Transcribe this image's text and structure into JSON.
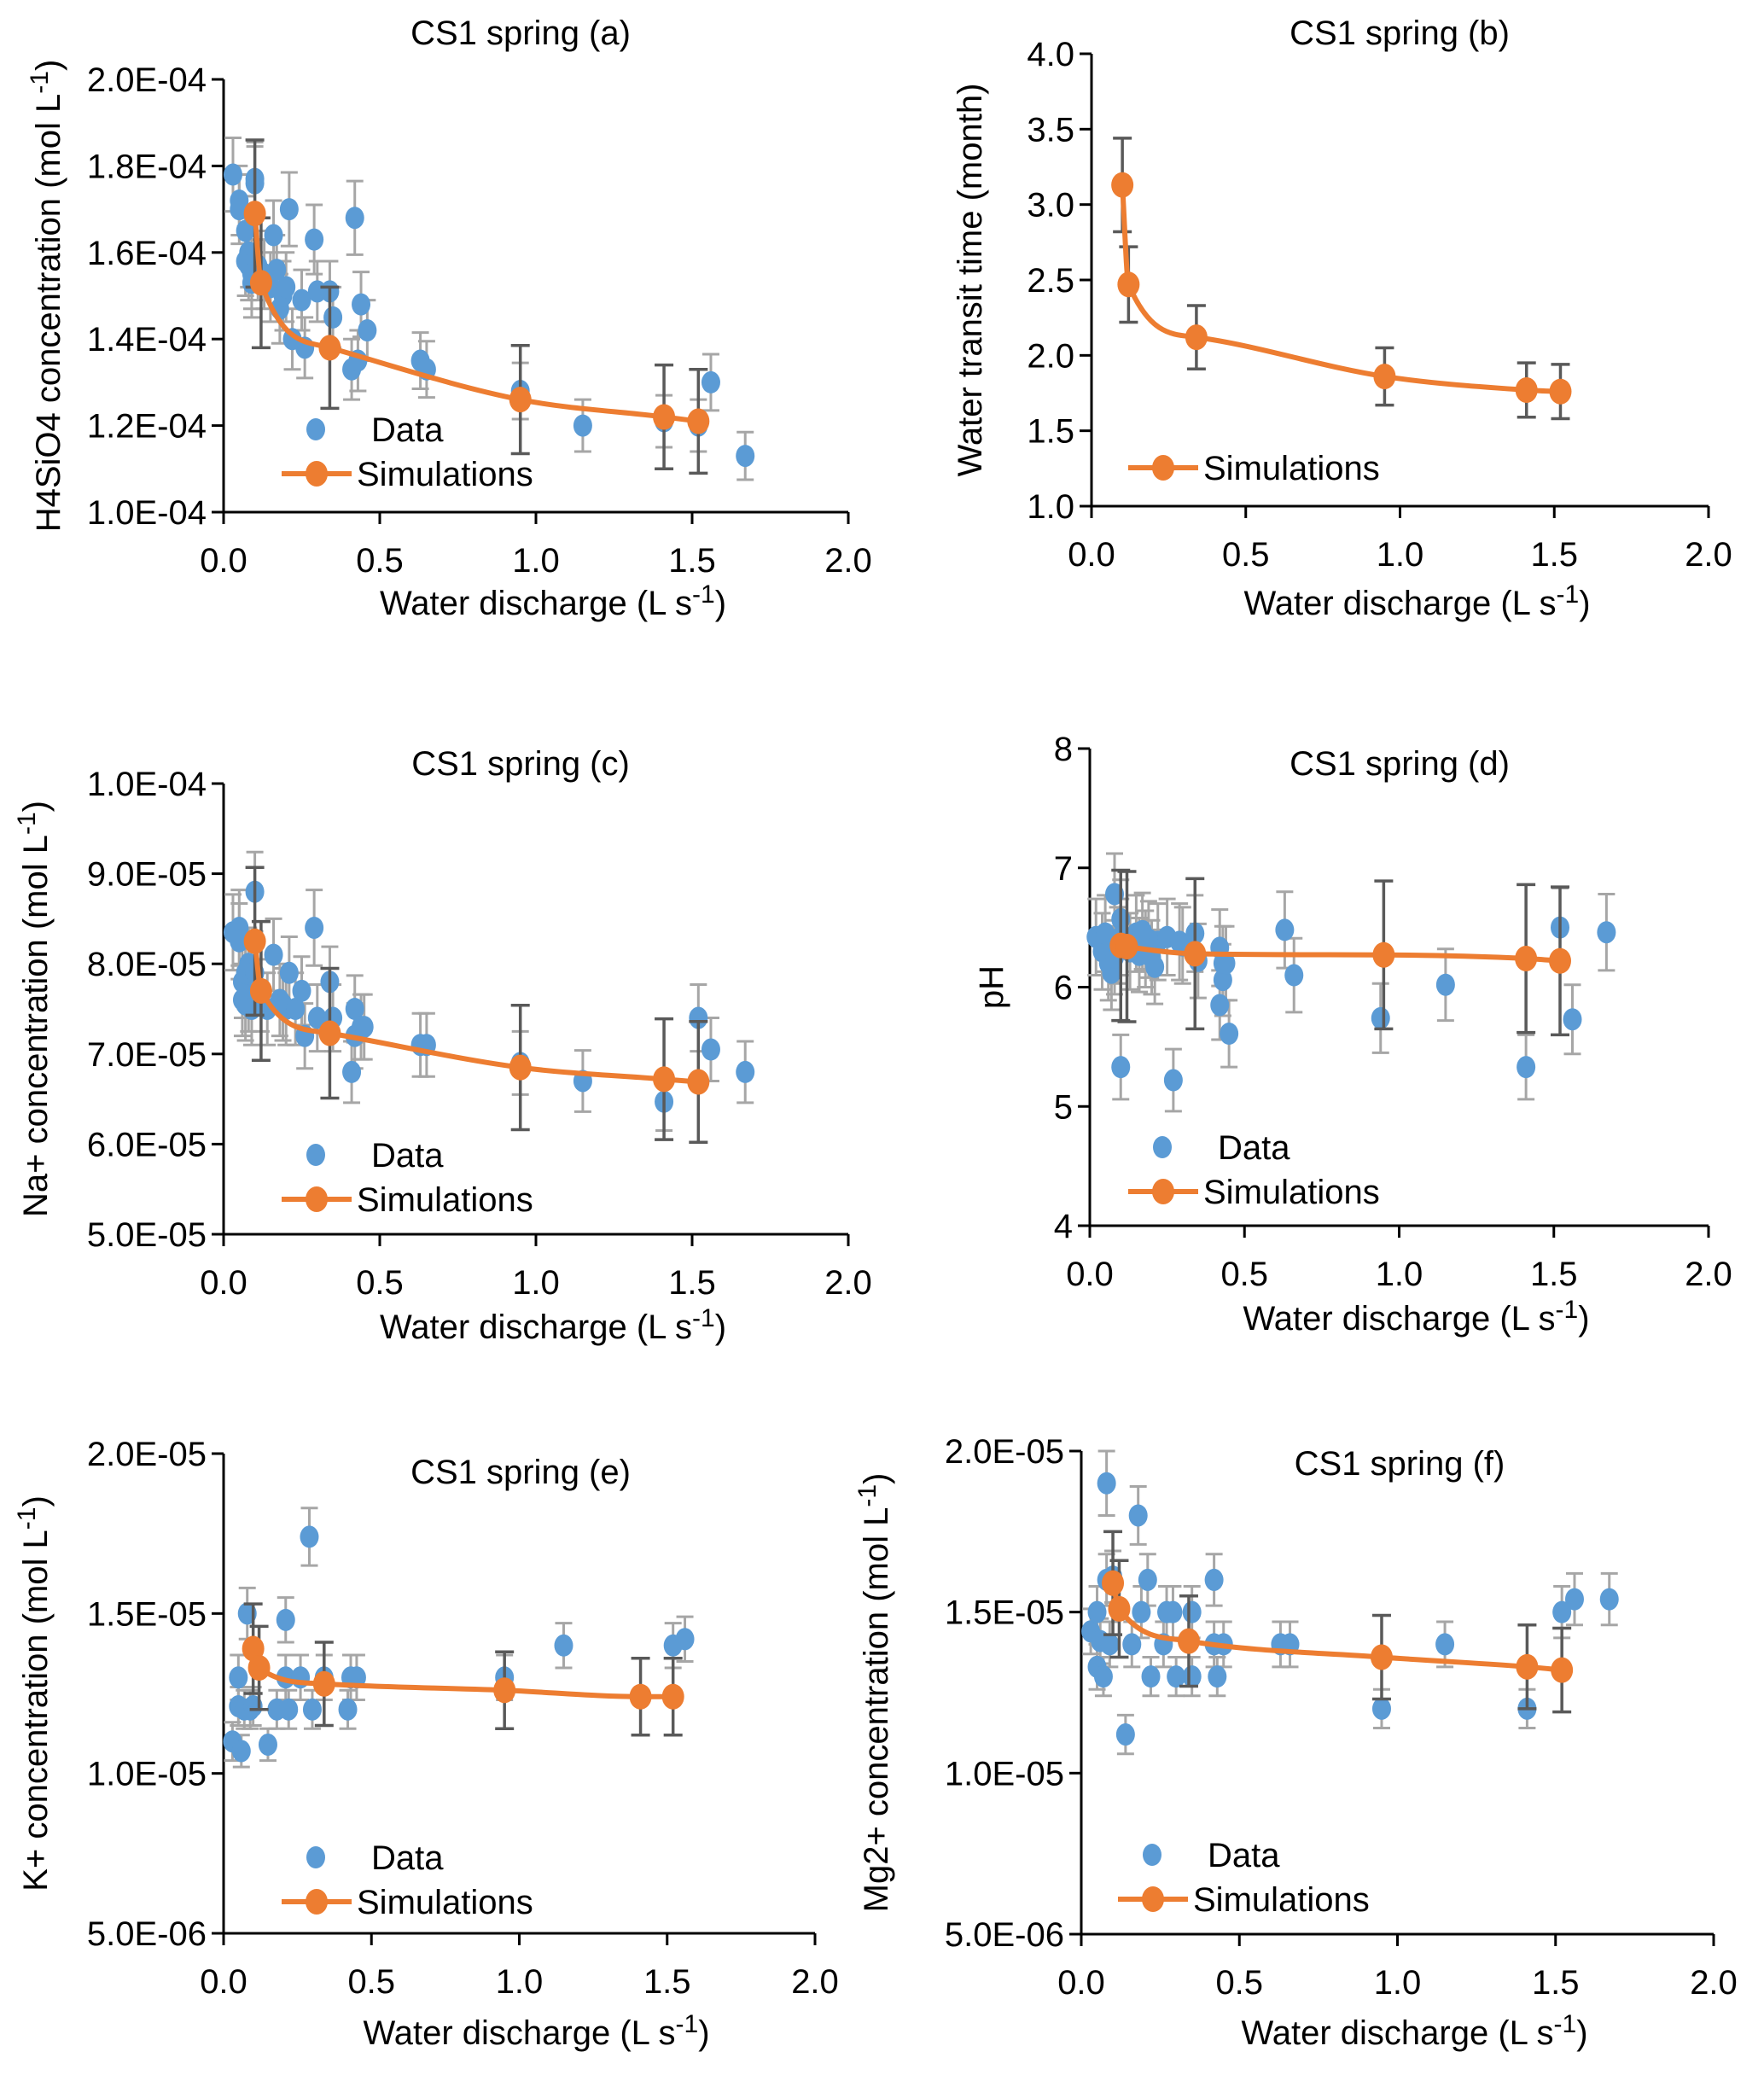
{
  "colors": {
    "data_marker": "#5b9bd5",
    "simulation": "#ed7d31",
    "data_error": "#a6a6a6",
    "sim_error": "#595959",
    "axis": "#000000"
  },
  "chart_data": [
    {
      "id": "a",
      "type": "scatter",
      "title": "CS1 spring  (a)",
      "xlabel": "Water discharge (L s-1)",
      "ylabel": "H4SiO4 concentration (mol L-1)",
      "xlim": [
        0,
        2.0
      ],
      "ylim": [
        0.0001,
        0.0002
      ],
      "xticks": [
        0,
        0.5,
        1.0,
        1.5,
        2.0
      ],
      "xtick_labels": [
        "0.0",
        "0.5",
        "1.0",
        "1.5",
        "2.0"
      ],
      "yticks": [
        0.0001,
        0.00012,
        0.00014,
        0.00016,
        0.00018,
        0.0002
      ],
      "ytick_labels": [
        "1.0E-04",
        "1.2E-04",
        "1.4E-04",
        "1.6E-04",
        "1.8E-04",
        "2.0E-04"
      ],
      "legend": [
        "Data",
        "Simulations"
      ],
      "legend_position": "bottom-left",
      "series": [
        {
          "name": "Data",
          "kind": "points",
          "x": [
            0.03,
            0.05,
            0.05,
            0.07,
            0.07,
            0.08,
            0.08,
            0.09,
            0.09,
            0.1,
            0.1,
            0.11,
            0.13,
            0.15,
            0.16,
            0.17,
            0.18,
            0.19,
            0.2,
            0.21,
            0.22,
            0.25,
            0.26,
            0.29,
            0.3,
            0.34,
            0.35,
            0.41,
            0.42,
            0.43,
            0.44,
            0.46,
            0.63,
            0.65,
            0.95,
            1.15,
            1.41,
            1.52,
            1.56,
            1.67
          ],
          "y": [
            0.000178,
            0.000172,
            0.00017,
            0.000165,
            0.000158,
            0.00016,
            0.000157,
            0.000153,
            0.000155,
            0.000177,
            0.000176,
            0.000157,
            0.000155,
            0.000152,
            0.000164,
            0.000156,
            0.000147,
            0.00015,
            0.000152,
            0.00017,
            0.00014,
            0.000149,
            0.000138,
            0.000163,
            0.000151,
            0.000151,
            0.000145,
            0.000133,
            0.000168,
            0.000135,
            0.000148,
            0.000142,
            0.000135,
            0.000133,
            0.000128,
            0.00012,
            0.000121,
            0.00012,
            0.00013,
            0.000113
          ],
          "err": [
            8.5e-06,
            8e-06,
            8e-06,
            8e-06,
            8e-06,
            8e-06,
            8e-06,
            8e-06,
            8e-06,
            8.5e-06,
            8.5e-06,
            8e-06,
            8e-06,
            8e-06,
            8e-06,
            8e-06,
            8e-06,
            8e-06,
            8e-06,
            8.5e-06,
            7e-06,
            7e-06,
            7e-06,
            8e-06,
            7e-06,
            7e-06,
            7e-06,
            7e-06,
            8.5e-06,
            7e-06,
            7.5e-06,
            7e-06,
            6.5e-06,
            6.5e-06,
            6.5e-06,
            6e-06,
            6e-06,
            6e-06,
            6.5e-06,
            5.5e-06
          ]
        },
        {
          "name": "Simulations",
          "kind": "line",
          "x": [
            0.1,
            0.12,
            0.34,
            0.95,
            1.41,
            1.52
          ],
          "y": [
            0.000169,
            0.000153,
            0.000138,
            0.000126,
            0.000122,
            0.000121
          ],
          "err": [
            1.7e-05,
            1.5e-05,
            1.4e-05,
            1.25e-05,
            1.2e-05,
            1.2e-05
          ]
        }
      ]
    },
    {
      "id": "b",
      "type": "line",
      "title": "CS1 spring  (b)",
      "xlabel": "Water discharge (L s-1)",
      "ylabel": "Water transit time (month)",
      "xlim": [
        0,
        2.0
      ],
      "ylim": [
        1.0,
        4.0
      ],
      "xticks": [
        0,
        0.5,
        1.0,
        1.5,
        2.0
      ],
      "xtick_labels": [
        "0.0",
        "0.5",
        "1.0",
        "1.5",
        "2.0"
      ],
      "yticks": [
        1.0,
        1.5,
        2.0,
        2.5,
        3.0,
        3.5,
        4.0
      ],
      "ytick_labels": [
        "1.0",
        "1.5",
        "2.0",
        "2.5",
        "3.0",
        "3.5",
        "4.0"
      ],
      "legend": [
        "Simulations"
      ],
      "legend_position": "bottom-left",
      "series": [
        {
          "name": "Simulations",
          "kind": "line",
          "x": [
            0.1,
            0.12,
            0.34,
            0.95,
            1.41,
            1.52
          ],
          "y": [
            3.13,
            2.47,
            2.12,
            1.86,
            1.77,
            1.76
          ],
          "err": [
            0.31,
            0.25,
            0.21,
            0.19,
            0.18,
            0.18
          ]
        }
      ]
    },
    {
      "id": "c",
      "type": "scatter",
      "title": "CS1 spring  (c)",
      "xlabel": "Water discharge (L s-1)",
      "ylabel": "Na+ concentration (mol L-1)",
      "xlim": [
        0,
        2.0
      ],
      "ylim": [
        5e-05,
        0.0001
      ],
      "xticks": [
        0,
        0.5,
        1.0,
        1.5,
        2.0
      ],
      "xtick_labels": [
        "0.0",
        "0.5",
        "1.0",
        "1.5",
        "2.0"
      ],
      "yticks": [
        5e-05,
        6e-05,
        7e-05,
        8e-05,
        9e-05,
        0.0001
      ],
      "ytick_labels": [
        "5.0E-05",
        "6.0E-05",
        "7.0E-05",
        "8.0E-05",
        "9.0E-05",
        "1.0E-04"
      ],
      "legend": [
        "Data",
        "Simulations"
      ],
      "legend_position": "bottom-left",
      "series": [
        {
          "name": "Data",
          "kind": "points",
          "x": [
            0.03,
            0.05,
            0.05,
            0.06,
            0.06,
            0.07,
            0.07,
            0.08,
            0.08,
            0.09,
            0.1,
            0.1,
            0.12,
            0.14,
            0.16,
            0.18,
            0.19,
            0.2,
            0.21,
            0.23,
            0.25,
            0.26,
            0.29,
            0.3,
            0.34,
            0.35,
            0.41,
            0.42,
            0.42,
            0.44,
            0.45,
            0.63,
            0.65,
            0.95,
            1.15,
            1.41,
            1.52,
            1.56,
            1.67
          ],
          "y": [
            8.35e-05,
            8.4e-05,
            8.25e-05,
            7.8e-05,
            7.6e-05,
            7.9e-05,
            7.55e-05,
            8e-05,
            7.65e-05,
            7.5e-05,
            8.8e-05,
            7.9e-05,
            7.65e-05,
            7.5e-05,
            8.1e-05,
            7.6e-05,
            7.55e-05,
            7.5e-05,
            7.9e-05,
            7.5e-05,
            7.7e-05,
            7.2e-05,
            8.4e-05,
            7.4e-05,
            7.8e-05,
            7.4e-05,
            6.8e-05,
            7.5e-05,
            7.2e-05,
            7.3e-05,
            7.3e-05,
            7.1e-05,
            7.1e-05,
            6.9e-05,
            6.7e-05,
            6.47e-05,
            7.4e-05,
            7.05e-05,
            6.8e-05
          ],
          "err": [
            4.2e-06,
            4.2e-06,
            4.2e-06,
            4e-06,
            4e-06,
            4e-06,
            4e-06,
            4e-06,
            4e-06,
            4e-06,
            4.4e-06,
            4e-06,
            4e-06,
            4e-06,
            4e-06,
            4e-06,
            4e-06,
            4e-06,
            4e-06,
            4e-06,
            3.8e-06,
            3.6e-06,
            4.2e-06,
            3.7e-06,
            3.9e-06,
            3.7e-06,
            3.4e-06,
            3.7e-06,
            3.6e-06,
            3.6e-06,
            3.6e-06,
            3.5e-06,
            3.5e-06,
            3.5e-06,
            3.4e-06,
            3.2e-06,
            3.7e-06,
            3.5e-06,
            3.4e-06
          ]
        },
        {
          "name": "Simulations",
          "kind": "line",
          "x": [
            0.1,
            0.12,
            0.34,
            0.95,
            1.41,
            1.52
          ],
          "y": [
            8.25e-05,
            7.7e-05,
            7.23e-05,
            6.85e-05,
            6.72e-05,
            6.69e-05
          ],
          "err": [
            8.2e-06,
            7.7e-06,
            7.2e-06,
            6.9e-06,
            6.7e-06,
            6.7e-06
          ]
        }
      ]
    },
    {
      "id": "d",
      "type": "scatter",
      "title": "CS1 spring  (d)",
      "xlabel": "Water discharge (L s-1)",
      "ylabel": "pH",
      "xlim": [
        0,
        2.0
      ],
      "ylim": [
        4,
        8
      ],
      "xticks": [
        0,
        0.5,
        1.0,
        1.5,
        2.0
      ],
      "xtick_labels": [
        "0.0",
        "0.5",
        "1.0",
        "1.5",
        "2.0"
      ],
      "yticks": [
        4,
        5,
        6,
        7,
        8
      ],
      "ytick_labels": [
        "4",
        "5",
        "6",
        "7",
        "8"
      ],
      "legend": [
        "Data",
        "Simulations"
      ],
      "legend_position": "bottom-left",
      "series": [
        {
          "name": "Data",
          "kind": "points",
          "x": [
            0.02,
            0.04,
            0.05,
            0.06,
            0.07,
            0.08,
            0.08,
            0.09,
            0.1,
            0.1,
            0.1,
            0.13,
            0.15,
            0.16,
            0.17,
            0.18,
            0.19,
            0.2,
            0.21,
            0.22,
            0.25,
            0.27,
            0.29,
            0.3,
            0.34,
            0.35,
            0.42,
            0.43,
            0.43,
            0.42,
            0.44,
            0.45,
            0.63,
            0.66,
            0.94,
            1.15,
            1.41,
            1.52,
            1.56,
            1.67
          ],
          "y": [
            6.42,
            6.3,
            6.45,
            6.2,
            6.12,
            6.78,
            6.25,
            6.35,
            6.57,
            6.42,
            5.33,
            6.3,
            6.45,
            6.27,
            6.47,
            6.32,
            6.4,
            6.25,
            6.17,
            6.38,
            6.42,
            5.22,
            6.38,
            6.35,
            6.45,
            6.22,
            6.33,
            6.2,
            6.06,
            5.85,
            6.2,
            5.61,
            6.48,
            6.1,
            5.74,
            6.02,
            5.33,
            6.5,
            5.73,
            6.46
          ],
          "err": [
            0.32,
            0.32,
            0.32,
            0.31,
            0.31,
            0.34,
            0.31,
            0.32,
            0.33,
            0.32,
            0.27,
            0.32,
            0.32,
            0.31,
            0.32,
            0.32,
            0.32,
            0.31,
            0.31,
            0.32,
            0.32,
            0.26,
            0.32,
            0.32,
            0.32,
            0.31,
            0.32,
            0.31,
            0.3,
            0.29,
            0.31,
            0.28,
            0.32,
            0.31,
            0.29,
            0.3,
            0.27,
            0.33,
            0.29,
            0.32
          ]
        },
        {
          "name": "Simulations",
          "kind": "line",
          "x": [
            0.1,
            0.12,
            0.34,
            0.95,
            1.41,
            1.52
          ],
          "y": [
            6.35,
            6.34,
            6.28,
            6.27,
            6.24,
            6.22
          ],
          "err": [
            0.63,
            0.63,
            0.63,
            0.62,
            0.62,
            0.62
          ]
        }
      ]
    },
    {
      "id": "e",
      "type": "scatter",
      "title": "CS1 spring  (e)",
      "xlabel": "Water discharge (L s-1)",
      "ylabel": "K+ concentration (mol L-1)",
      "xlim": [
        0,
        2.0
      ],
      "ylim": [
        5e-06,
        2e-05
      ],
      "xticks": [
        0,
        0.5,
        1.0,
        1.5,
        2.0
      ],
      "xtick_labels": [
        "0.0",
        "0.5",
        "1.0",
        "1.5",
        "2.0"
      ],
      "yticks": [
        5e-06,
        1e-05,
        1.5e-05,
        2e-05
      ],
      "ytick_labels": [
        "5.0E-06",
        "1.0E-05",
        "1.5E-05",
        "2.0E-05"
      ],
      "legend": [
        "Data",
        "Simulations"
      ],
      "legend_position": "bottom-left",
      "series": [
        {
          "name": "Data",
          "kind": "points",
          "x": [
            0.03,
            0.05,
            0.05,
            0.06,
            0.07,
            0.08,
            0.09,
            0.1,
            0.15,
            0.18,
            0.21,
            0.22,
            0.21,
            0.26,
            0.29,
            0.3,
            0.34,
            0.42,
            0.43,
            0.45,
            0.95,
            1.15,
            1.52,
            1.56
          ],
          "y": [
            1.1e-05,
            1.3e-05,
            1.21e-05,
            1.07e-05,
            1.2e-05,
            1.5e-05,
            1.2e-05,
            1.21e-05,
            1.09e-05,
            1.2e-05,
            1.48e-05,
            1.2e-05,
            1.3e-05,
            1.3e-05,
            1.74e-05,
            1.2e-05,
            1.3e-05,
            1.2e-05,
            1.3e-05,
            1.3e-05,
            1.3e-05,
            1.4e-05,
            1.4e-05,
            1.42e-05
          ],
          "err": [
            6e-07,
            7e-07,
            6e-07,
            5e-07,
            6e-07,
            8e-07,
            6e-07,
            6e-07,
            5e-07,
            6e-07,
            7e-07,
            6e-07,
            7e-07,
            7e-07,
            9e-07,
            6e-07,
            7e-07,
            6e-07,
            7e-07,
            7e-07,
            7e-07,
            7e-07,
            7e-07,
            7e-07
          ]
        },
        {
          "name": "Simulations",
          "kind": "line",
          "x": [
            0.1,
            0.12,
            0.34,
            0.95,
            1.41,
            1.52
          ],
          "y": [
            1.39e-05,
            1.33e-05,
            1.28e-05,
            1.26e-05,
            1.24e-05,
            1.24e-05
          ],
          "err": [
            1.4e-06,
            1.3e-06,
            1.3e-06,
            1.2e-06,
            1.2e-06,
            1.2e-06
          ]
        }
      ]
    },
    {
      "id": "f",
      "type": "scatter",
      "title": "CS1 spring  (f)",
      "xlabel": "Water discharge (L s-1)",
      "ylabel": "Mg2+ concentration (mol L-1)",
      "xlim": [
        0,
        2.0
      ],
      "ylim": [
        5e-06,
        2e-05
      ],
      "xticks": [
        0,
        0.5,
        1.0,
        1.5,
        2.0
      ],
      "xtick_labels": [
        "0.0",
        "0.5",
        "1.0",
        "1.5",
        "2.0"
      ],
      "yticks": [
        5e-06,
        1e-05,
        1.5e-05,
        2e-05
      ],
      "ytick_labels": [
        "5.0E-06",
        "1.0E-05",
        "1.5E-05",
        "2.0E-05"
      ],
      "legend": [
        "Data",
        "Simulations"
      ],
      "legend_position": "bottom-left",
      "series": [
        {
          "name": "Data",
          "kind": "points",
          "x": [
            0.03,
            0.05,
            0.05,
            0.06,
            0.07,
            0.08,
            0.08,
            0.09,
            0.1,
            0.14,
            0.16,
            0.18,
            0.19,
            0.21,
            0.22,
            0.26,
            0.27,
            0.29,
            0.3,
            0.35,
            0.35,
            0.42,
            0.42,
            0.43,
            0.45,
            0.63,
            0.66,
            0.95,
            1.15,
            1.41,
            1.52,
            1.56,
            1.67
          ],
          "y": [
            1.44e-05,
            1.5e-05,
            1.33e-05,
            1.41e-05,
            1.3e-05,
            1.9e-05,
            1.6e-05,
            1.4e-05,
            1.61e-05,
            1.12e-05,
            1.4e-05,
            1.8e-05,
            1.5e-05,
            1.6e-05,
            1.3e-05,
            1.4e-05,
            1.5e-05,
            1.5e-05,
            1.3e-05,
            1.5e-05,
            1.3e-05,
            1.6e-05,
            1.4e-05,
            1.3e-05,
            1.4e-05,
            1.4e-05,
            1.4e-05,
            1.2e-05,
            1.4e-05,
            1.2e-05,
            1.5e-05,
            1.54e-05,
            1.54e-05
          ],
          "err": [
            7e-07,
            8e-07,
            7e-07,
            7e-07,
            6e-07,
            1e-06,
            8e-07,
            7e-07,
            8e-07,
            6e-07,
            7e-07,
            9e-07,
            8e-07,
            8e-07,
            6e-07,
            7e-07,
            8e-07,
            8e-07,
            6e-07,
            8e-07,
            6e-07,
            8e-07,
            7e-07,
            6e-07,
            7e-07,
            7e-07,
            7e-07,
            6e-07,
            7e-07,
            6e-07,
            8e-07,
            8e-07,
            8e-07
          ]
        },
        {
          "name": "Simulations",
          "kind": "line",
          "x": [
            0.1,
            0.12,
            0.34,
            0.95,
            1.41,
            1.52
          ],
          "y": [
            1.59e-05,
            1.51e-05,
            1.41e-05,
            1.36e-05,
            1.33e-05,
            1.32e-05
          ],
          "err": [
            1.6e-06,
            1.5e-06,
            1.4e-06,
            1.3e-06,
            1.3e-06,
            1.3e-06
          ]
        }
      ]
    }
  ]
}
